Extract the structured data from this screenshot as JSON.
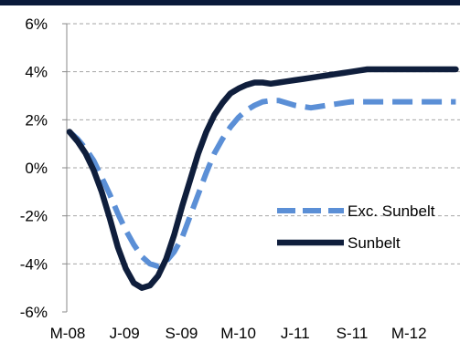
{
  "chart_data": {
    "type": "line",
    "x_ticks": [
      "M-08",
      "J-09",
      "S-09",
      "M-10",
      "J-11",
      "S-11",
      "M-12"
    ],
    "y_ticks": [
      "6%",
      "4%",
      "2%",
      "0%",
      "-2%",
      "-4%",
      "-6%"
    ],
    "ylim": [
      -6,
      6
    ],
    "grid": "horizontal dashed",
    "legend_position": "right",
    "series": [
      {
        "name": "Exc. Sunbelt",
        "color": "#5b8fd6",
        "style": "dashed",
        "x": [
          0,
          1,
          2,
          3,
          4,
          5,
          6,
          7,
          8,
          9,
          10,
          11,
          12,
          13,
          14,
          15,
          16,
          17,
          18,
          19,
          20,
          21,
          22,
          23,
          24,
          25,
          26,
          27,
          28,
          29,
          30,
          31,
          32,
          33,
          34,
          35,
          36,
          37,
          38,
          39,
          40,
          41,
          42,
          43,
          44,
          45,
          46,
          47,
          48
        ],
        "values": [
          1.5,
          1.2,
          0.8,
          0.3,
          -0.4,
          -1.1,
          -1.9,
          -2.6,
          -3.2,
          -3.7,
          -4.0,
          -4.1,
          -3.9,
          -3.5,
          -2.9,
          -2.0,
          -1.1,
          -0.2,
          0.6,
          1.2,
          1.7,
          2.1,
          2.4,
          2.6,
          2.75,
          2.8,
          2.8,
          2.7,
          2.6,
          2.55,
          2.5,
          2.55,
          2.6,
          2.65,
          2.7,
          2.75,
          2.75,
          2.75,
          2.75,
          2.75,
          2.75,
          2.75,
          2.75,
          2.75,
          2.75,
          2.75,
          2.75,
          2.75,
          2.75
        ]
      },
      {
        "name": "Sunbelt",
        "color": "#0f1e3c",
        "style": "solid",
        "x": [
          0,
          1,
          2,
          3,
          4,
          5,
          6,
          7,
          8,
          9,
          10,
          11,
          12,
          13,
          14,
          15,
          16,
          17,
          18,
          19,
          20,
          21,
          22,
          23,
          24,
          25,
          26,
          27,
          28,
          29,
          30,
          31,
          32,
          33,
          34,
          35,
          36,
          37,
          38,
          39,
          40,
          41,
          42,
          43,
          44,
          45,
          46,
          47,
          48
        ],
        "values": [
          1.5,
          1.1,
          0.6,
          -0.1,
          -1.0,
          -2.1,
          -3.3,
          -4.2,
          -4.8,
          -5.0,
          -4.9,
          -4.5,
          -3.8,
          -2.8,
          -1.6,
          -0.5,
          0.6,
          1.5,
          2.2,
          2.7,
          3.1,
          3.3,
          3.45,
          3.55,
          3.55,
          3.5,
          3.55,
          3.6,
          3.65,
          3.7,
          3.75,
          3.8,
          3.85,
          3.9,
          3.95,
          4.0,
          4.05,
          4.1,
          4.1,
          4.1,
          4.1,
          4.1,
          4.1,
          4.1,
          4.1,
          4.1,
          4.1,
          4.1,
          4.1
        ]
      }
    ]
  }
}
